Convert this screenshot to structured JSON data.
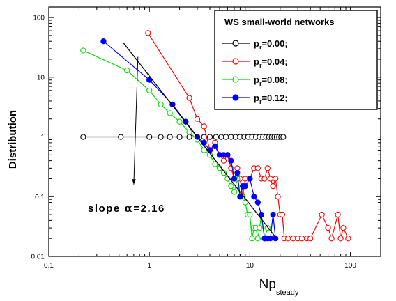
{
  "chart_data": {
    "type": "scatter",
    "title": "",
    "xlabel": "Np",
    "xlabel_subscript": "steady",
    "ylabel": "Distribution",
    "xscale": "log",
    "yscale": "log",
    "xlim": [
      0.1,
      200
    ],
    "ylim": [
      0.01,
      150
    ],
    "x_ticks": [
      0.1,
      1,
      10,
      100
    ],
    "x_tick_labels": [
      "0.1",
      "1",
      "10",
      "100"
    ],
    "y_ticks": [
      0.01,
      0.1,
      1,
      10,
      100
    ],
    "y_tick_labels": [
      "0.01",
      "0.1",
      "1",
      "10",
      "100"
    ],
    "grid": false,
    "legend": {
      "title": "WS small-world networks",
      "placement": "top-right",
      "entry_prefix": "p",
      "entry_subscript": "r"
    },
    "annotation": {
      "text": "slope α=2.16",
      "slope_prefix": "slope ",
      "alpha_symbol": "α",
      "slope_value": "=2.16",
      "fit_line": {
        "x": [
          0.55,
          18
        ],
        "y": [
          38,
          0.021
        ]
      },
      "arrow_from": {
        "x": 0.7,
        "y": 0.16
      },
      "arrow_to": {
        "x": 0.77,
        "y": 22
      }
    },
    "series": [
      {
        "name": "=0.00;",
        "color": "#000000",
        "marker": "open-circle",
        "x": [
          0.22,
          0.52,
          1.0,
          1.3,
          1.6,
          2.0,
          2.5,
          3.0,
          3.5,
          4.0,
          4.6,
          5.2,
          5.8,
          6.5,
          7.2,
          8.0,
          8.8,
          9.6,
          10.5,
          11.5,
          12.5,
          13.5,
          14.5,
          15.5,
          16.5,
          17.5,
          18.5,
          19.5,
          20.5,
          21.5
        ],
        "y": [
          1,
          1,
          1,
          1,
          1,
          1,
          1,
          1,
          1,
          1,
          1,
          1,
          1,
          1,
          1,
          1,
          1,
          1,
          1,
          1,
          1,
          1,
          1,
          1,
          1,
          1,
          1,
          1,
          1,
          1
        ]
      },
      {
        "name": "=0.04;",
        "color": "#ff0000",
        "marker": "open-circle",
        "x": [
          0.97,
          2.5,
          3.0,
          3.5,
          4.0,
          4.5,
          5.0,
          5.5,
          6.0,
          6.5,
          7.0,
          7.5,
          8.0,
          8.5,
          9.0,
          10.0,
          11.0,
          12.0,
          13.0,
          14.0,
          15.0,
          16.0,
          17.0,
          18.0,
          19.0,
          20.0,
          21.0,
          22.0,
          24.0,
          27.0,
          30.0,
          33.0,
          37.0,
          40.0,
          52.0,
          60.0,
          65.0,
          75.0,
          80.0,
          85.0,
          95.0
        ],
        "y": [
          55,
          4.5,
          2.0,
          1.5,
          0.6,
          0.8,
          0.5,
          0.4,
          0.5,
          0.3,
          0.2,
          0.3,
          0.2,
          0.1,
          0.2,
          0.2,
          0.3,
          0.3,
          0.2,
          0.2,
          0.3,
          0.2,
          0.15,
          0.2,
          0.1,
          0.05,
          0.05,
          0.02,
          0.02,
          0.02,
          0.02,
          0.02,
          0.02,
          0.02,
          0.05,
          0.03,
          0.02,
          0.05,
          0.02,
          0.03,
          0.02
        ]
      },
      {
        "name": "=0.08;",
        "color": "#00dd00",
        "marker": "open-circle",
        "x": [
          0.22,
          0.6,
          1.0,
          1.3,
          1.6,
          2.0,
          2.5,
          3.0,
          3.5,
          4.0,
          4.5,
          5.0,
          5.5,
          6.0,
          6.5,
          7.0,
          7.5,
          8.0,
          8.5,
          9.0,
          9.5,
          10.0,
          10.5,
          11.0,
          11.5,
          12.0,
          12.5,
          13.0,
          14.0,
          15.0
        ],
        "y": [
          28,
          13,
          6.0,
          3.5,
          2.5,
          1.8,
          1.2,
          0.9,
          0.6,
          0.5,
          0.35,
          0.3,
          0.25,
          0.2,
          0.15,
          0.12,
          0.2,
          0.1,
          0.15,
          0.08,
          0.05,
          0.05,
          0.02,
          0.03,
          0.03,
          0.02,
          0.03,
          0.05,
          0.02,
          0.03
        ]
      },
      {
        "name": "=0.12;",
        "color": "#0000ff",
        "marker": "filled-circle",
        "x": [
          0.35,
          1.0,
          1.7,
          2.3,
          3.0,
          3.5,
          4.0,
          4.5,
          5.0,
          5.5,
          6.0,
          6.5,
          7.0,
          7.5,
          8.0,
          8.5,
          9.0,
          10.0,
          11.0,
          12.0,
          13.0,
          14.0,
          15.0,
          16.0,
          17.0,
          18.0
        ],
        "y": [
          40,
          9.0,
          3.5,
          1.8,
          1.0,
          0.8,
          0.6,
          0.7,
          0.5,
          0.5,
          0.5,
          0.4,
          0.2,
          0.25,
          0.1,
          0.15,
          0.15,
          0.2,
          0.1,
          0.08,
          0.05,
          0.02,
          0.02,
          0.02,
          0.05,
          0.02
        ]
      }
    ]
  }
}
